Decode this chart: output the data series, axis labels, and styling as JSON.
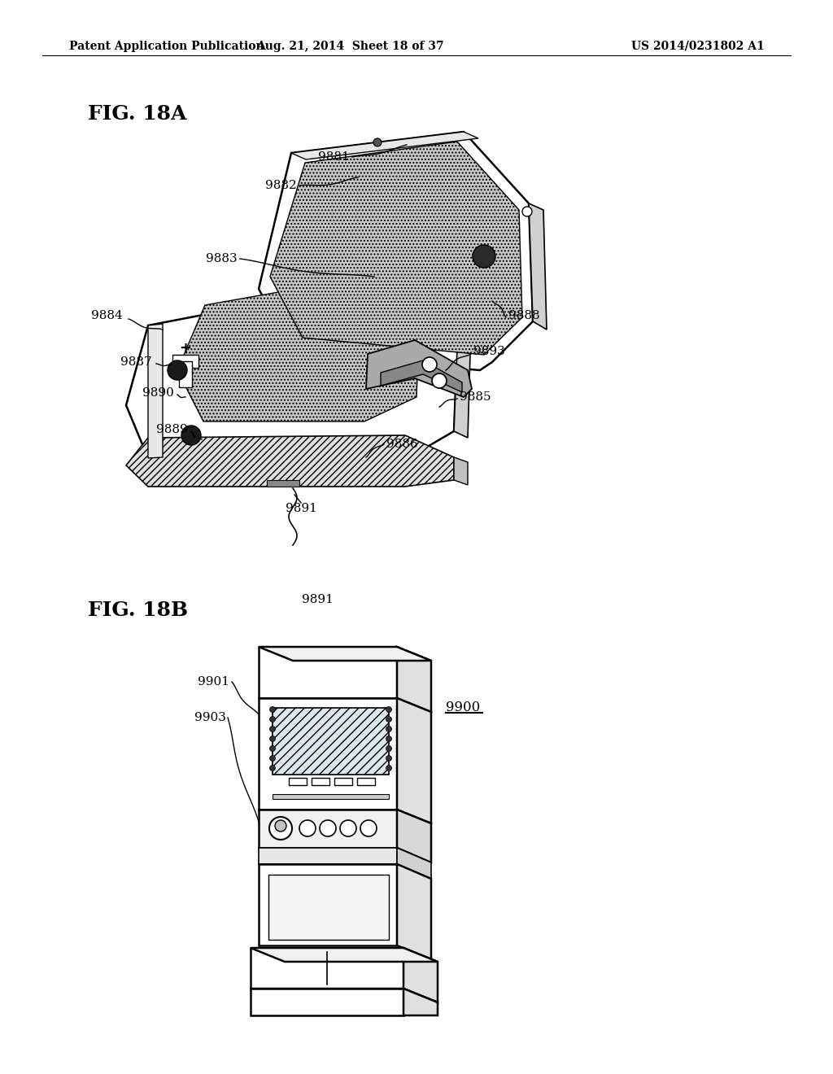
{
  "header_left": "Patent Application Publication",
  "header_mid": "Aug. 21, 2014  Sheet 18 of 37",
  "header_right": "US 2014/0231802 A1",
  "fig18a_label": "FIG. 18A",
  "fig18b_label": "FIG. 18B",
  "bg_color": "#ffffff",
  "line_color": "#000000",
  "text_color": "#000000",
  "header_fontsize": 10,
  "label_fontsize": 11,
  "fig_label_fontsize": 18
}
